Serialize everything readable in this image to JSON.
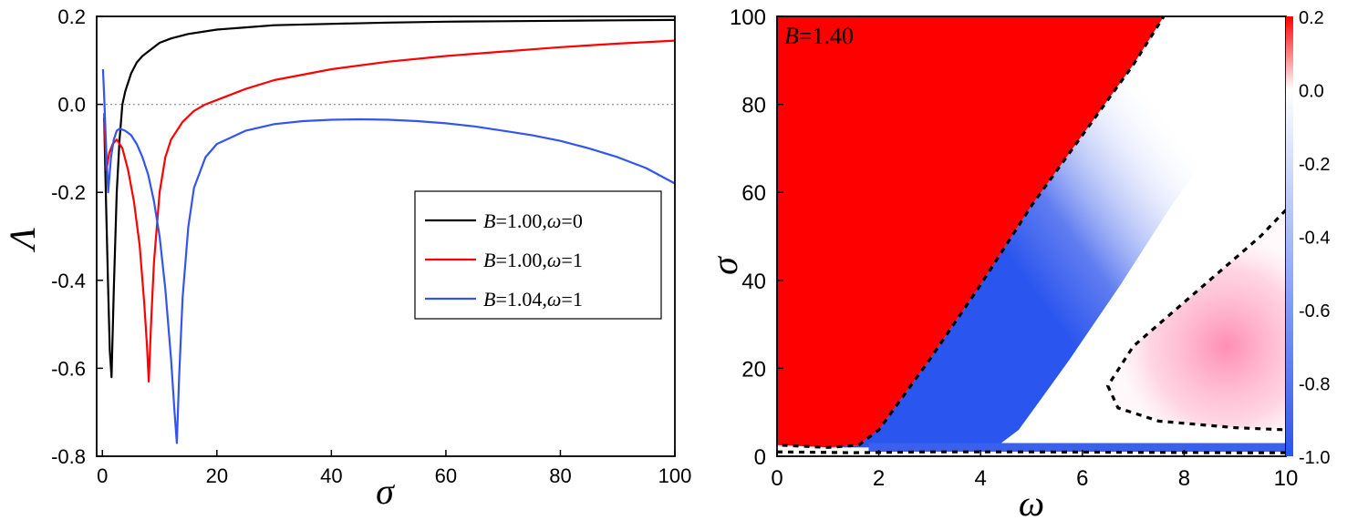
{
  "chart_data": [
    {
      "type": "line",
      "xlabel": "σ",
      "ylabel": "Λ",
      "xlim": [
        -1,
        100
      ],
      "ylim": [
        -0.8,
        0.2
      ],
      "xticks": [
        "0",
        "20",
        "40",
        "60",
        "80",
        "100"
      ],
      "xtick_values": [
        0,
        20,
        40,
        60,
        80,
        100
      ],
      "yticks": [
        "0.2",
        "0.0",
        "-0.2",
        "-0.4",
        "-0.6",
        "-0.8"
      ],
      "ytick_values": [
        0.2,
        0.0,
        -0.2,
        -0.4,
        -0.6,
        -0.8
      ],
      "reference_line": {
        "y": 0.0,
        "style": "dotted"
      },
      "legend_position": "center-right",
      "series": [
        {
          "name": "B=1.00,ω=0",
          "legend": {
            "b_sym": "B",
            "b_val": "=1.00,",
            "w_sym": "ω",
            "w_val": "=0"
          },
          "color": "#000000",
          "x": [
            0.3,
            0.6,
            1.0,
            1.3,
            1.6,
            2.0,
            2.5,
            3.0,
            3.5,
            4.0,
            5,
            6,
            7,
            8,
            10,
            12,
            15,
            20,
            25,
            30,
            40,
            50,
            60,
            70,
            80,
            90,
            100
          ],
          "y": [
            -0.03,
            -0.2,
            -0.42,
            -0.56,
            -0.62,
            -0.42,
            -0.2,
            -0.08,
            0.0,
            0.03,
            0.07,
            0.095,
            0.11,
            0.12,
            0.14,
            0.15,
            0.16,
            0.17,
            0.175,
            0.18,
            0.183,
            0.186,
            0.188,
            0.189,
            0.19,
            0.191,
            0.192
          ]
        },
        {
          "name": "B=1.00,ω=1",
          "legend": {
            "b_sym": "B",
            "b_val": "=1.00,",
            "w_sym": "ω",
            "w_val": "=1"
          },
          "color": "#ff0000",
          "x": [
            0.3,
            0.7,
            1.2,
            1.8,
            2.5,
            3.5,
            4.5,
            5.5,
            6.5,
            7.3,
            7.8,
            8.1,
            8.5,
            9,
            10,
            11,
            12,
            14,
            16,
            18,
            20,
            25,
            30,
            40,
            50,
            60,
            70,
            80,
            90,
            100
          ],
          "y": [
            -0.02,
            -0.15,
            -0.11,
            -0.09,
            -0.08,
            -0.1,
            -0.15,
            -0.22,
            -0.32,
            -0.45,
            -0.55,
            -0.63,
            -0.5,
            -0.36,
            -0.2,
            -0.12,
            -0.08,
            -0.04,
            -0.015,
            0.0,
            0.01,
            0.035,
            0.055,
            0.08,
            0.097,
            0.11,
            0.12,
            0.13,
            0.138,
            0.145
          ]
        },
        {
          "name": "B=1.04,ω=1",
          "legend": {
            "b_sym": "B",
            "b_val": "=1.04,",
            "w_sym": "ω",
            "w_val": "=1"
          },
          "color": "#3355ee",
          "x": [
            0.1,
            0.3,
            0.6,
            1.0,
            1.5,
            2.0,
            2.5,
            3.0,
            4.0,
            5.0,
            6.0,
            7.0,
            8.0,
            9.0,
            10.0,
            11.0,
            12.0,
            12.6,
            13.0,
            13.4,
            14.0,
            15.0,
            16.0,
            18.0,
            20.0,
            25.0,
            30.0,
            35.0,
            40.0,
            45.0,
            50.0,
            55.0,
            60.0,
            65.0,
            70.0,
            75.0,
            80.0,
            85.0,
            90.0,
            95.0,
            100.0
          ],
          "y": [
            0.08,
            0.02,
            -0.08,
            -0.2,
            -0.12,
            -0.08,
            -0.06,
            -0.055,
            -0.06,
            -0.07,
            -0.09,
            -0.12,
            -0.16,
            -0.22,
            -0.3,
            -0.42,
            -0.58,
            -0.7,
            -0.77,
            -0.62,
            -0.44,
            -0.28,
            -0.19,
            -0.12,
            -0.09,
            -0.06,
            -0.045,
            -0.038,
            -0.035,
            -0.034,
            -0.035,
            -0.038,
            -0.043,
            -0.05,
            -0.06,
            -0.07,
            -0.083,
            -0.1,
            -0.12,
            -0.145,
            -0.18
          ]
        }
      ]
    },
    {
      "type": "heatmap",
      "xlabel": "ω",
      "ylabel": "σ",
      "xlim": [
        0,
        10
      ],
      "ylim": [
        0,
        100
      ],
      "xticks": [
        "0",
        "2",
        "4",
        "6",
        "8",
        "10"
      ],
      "xtick_values": [
        0,
        2,
        4,
        6,
        8,
        10
      ],
      "yticks": [
        "0",
        "20",
        "40",
        "60",
        "80",
        "100"
      ],
      "ytick_values": [
        0,
        20,
        40,
        60,
        80,
        100
      ],
      "annotation": {
        "sym": "B",
        "val": "=1.40"
      },
      "colorbar": {
        "range": [
          -1.0,
          0.2
        ],
        "ticks": [
          "0.2",
          "0.0",
          "-0.2",
          "-0.4",
          "-0.6",
          "-0.8",
          "-1.0"
        ],
        "tick_values": [
          0.2,
          0.0,
          -0.2,
          -0.4,
          -0.6,
          -0.8,
          -1.0
        ],
        "colors": {
          "max": "#ff0000",
          "zero": "#ffffff",
          "min": "#2a55ee"
        }
      },
      "boundaries": [
        {
          "name": "upper-boundary",
          "style": "dotted",
          "points": [
            [
              0.1,
              2.5
            ],
            [
              1.0,
              2.0
            ],
            [
              1.6,
              2.5
            ],
            [
              2.0,
              6.0
            ],
            [
              2.5,
              14.0
            ],
            [
              3.0,
              22.0
            ],
            [
              4.0,
              39.0
            ],
            [
              5.0,
              57.0
            ],
            [
              6.0,
              73.0
            ],
            [
              7.0,
              89.0
            ],
            [
              7.6,
              100.0
            ]
          ]
        },
        {
          "name": "lower-boundary",
          "style": "dotted",
          "points": [
            [
              0.0,
              1.0
            ],
            [
              1.5,
              0.8
            ],
            [
              3.0,
              1.0
            ],
            [
              5.0,
              1.0
            ],
            [
              7.0,
              0.9
            ],
            [
              9.0,
              0.8
            ],
            [
              10.0,
              0.8
            ]
          ]
        },
        {
          "name": "positive-region-boundary",
          "style": "dotted",
          "points": [
            [
              10.0,
              56.0
            ],
            [
              9.5,
              50.0
            ],
            [
              9.0,
              45.0
            ],
            [
              8.0,
              35.0
            ],
            [
              7.0,
              25.0
            ],
            [
              6.5,
              16.0
            ],
            [
              6.7,
              11.0
            ],
            [
              7.5,
              8.0
            ],
            [
              9.0,
              6.5
            ],
            [
              10.0,
              6.0
            ]
          ]
        }
      ]
    }
  ]
}
